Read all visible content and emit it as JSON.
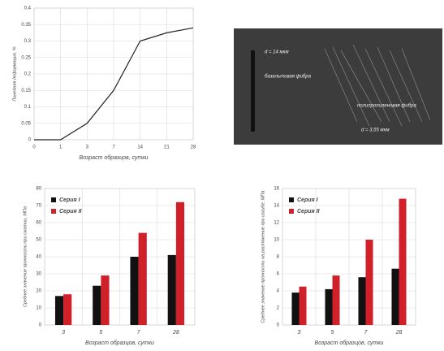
{
  "chart_data": [
    {
      "type": "line",
      "y_label": "Линейная деформация, %",
      "x_label": "Возраст образцов, сутки",
      "categories": [
        "0",
        "1",
        "3",
        "7",
        "14",
        "21",
        "28"
      ],
      "values": [
        0,
        0,
        0.05,
        0.15,
        0.3,
        0.325,
        0.34
      ],
      "color": "#222222",
      "ylim": [
        0,
        0.4
      ],
      "yticks": [
        0,
        0.05,
        0.1,
        0.15,
        0.2,
        0.25,
        0.3,
        0.35,
        0.4
      ],
      "grid": true
    },
    {
      "type": "bar",
      "y_label": "Среднее значение прочности при сжатии, МПа",
      "x_label": "Возраст образцов, сутки",
      "categories": [
        "3",
        "5",
        "7",
        "28"
      ],
      "series": [
        {
          "name": "Серия I",
          "color": "#111111",
          "values": [
            17,
            23,
            40,
            41
          ]
        },
        {
          "name": "Серия II",
          "color": "#d0202a",
          "values": [
            18,
            29,
            54,
            72
          ]
        }
      ],
      "ylim": [
        0,
        80
      ],
      "yticks": [
        0,
        10,
        20,
        30,
        40,
        50,
        60,
        70,
        80
      ],
      "grid": true,
      "legend": "upper-left"
    },
    {
      "type": "bar",
      "y_label": "Среднее значение прочности на растяжение при изгибе, МПа",
      "x_label": "Возраст образцов, сутки",
      "categories": [
        "3",
        "5",
        "7",
        "28"
      ],
      "series": [
        {
          "name": "Серия I",
          "color": "#111111",
          "values": [
            3.8,
            4.2,
            5.6,
            6.6
          ]
        },
        {
          "name": "Серия II",
          "color": "#d0202a",
          "values": [
            4.5,
            5.8,
            10,
            14.8
          ]
        }
      ],
      "ylim": [
        0,
        16
      ],
      "yticks": [
        0,
        2,
        4,
        6,
        8,
        10,
        12,
        14,
        16
      ],
      "grid": true,
      "legend": "upper-left"
    }
  ],
  "photo": {
    "labels": [
      "d = 14 мкм",
      "базальтовая фибра",
      "полипропиленовая фибра",
      "d = 3,55 мкм"
    ]
  }
}
